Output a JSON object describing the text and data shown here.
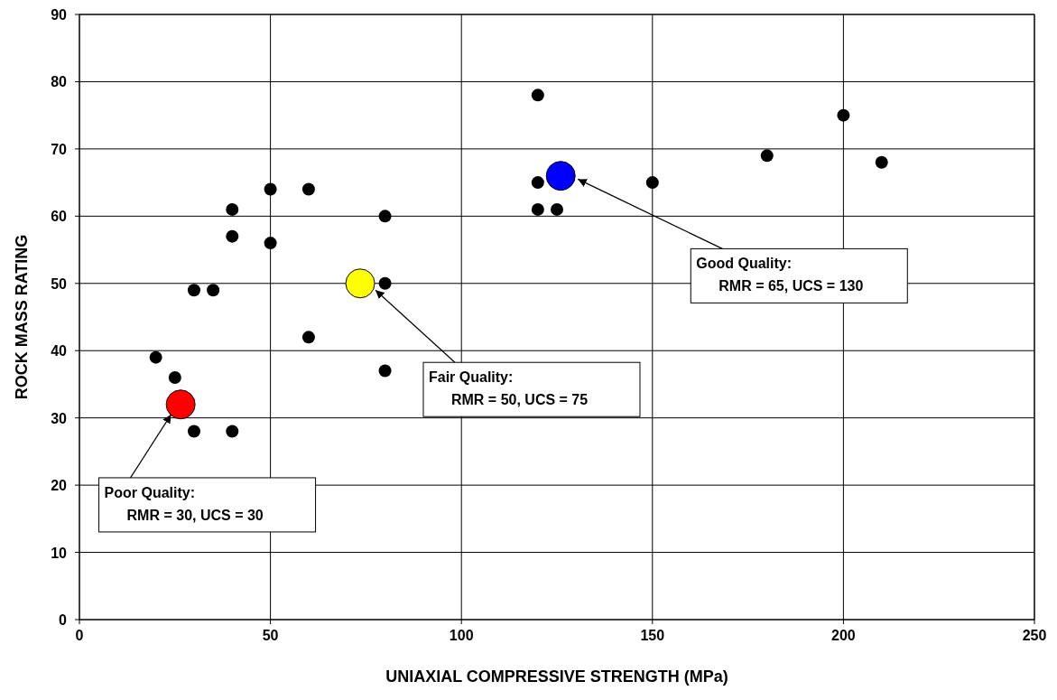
{
  "chart_data": {
    "type": "scatter",
    "xlabel": "UNIAXIAL COMPRESSIVE STRENGTH (MPa)",
    "ylabel": "ROCK MASS RATING",
    "xlim": [
      0,
      250
    ],
    "xticks": [
      0,
      50,
      100,
      150,
      200,
      250
    ],
    "ylim": [
      0,
      90
    ],
    "yticks": [
      0,
      10,
      20,
      30,
      40,
      50,
      60,
      70,
      80,
      90
    ],
    "grid": true,
    "marker": "circle",
    "series": [
      {
        "color": "#000000",
        "x": [
          20,
          25,
          30,
          40,
          30,
          35,
          40,
          40,
          50,
          50,
          60,
          60,
          80,
          80,
          80,
          120,
          120,
          120,
          125,
          150,
          180,
          200,
          210
        ],
        "values": [
          39,
          36,
          28,
          28,
          49,
          49,
          61,
          57,
          64,
          56,
          64,
          42,
          60,
          50,
          37,
          78,
          65,
          61,
          61,
          65,
          69,
          75,
          68
        ]
      },
      {
        "color": "#ff0000",
        "x": [
          26.5
        ],
        "values": [
          32
        ]
      },
      {
        "color": "#ffff00",
        "x": [
          73.5
        ],
        "values": [
          50
        ]
      },
      {
        "color": "#0000ff",
        "x": [
          126
        ],
        "values": [
          66
        ]
      }
    ],
    "annotations": [
      {
        "text": "Poor Quality:\nRMR = 30, UCS = 30",
        "x": 24,
        "y": 30.5
      },
      {
        "text": "Fair Quality:\nRMR = 50, UCS = 75",
        "x": 77.5,
        "y": 49
      },
      {
        "text": "Good Quality:\nRMR = 65, UCS = 130",
        "x": 130.5,
        "y": 65.5
      }
    ]
  }
}
